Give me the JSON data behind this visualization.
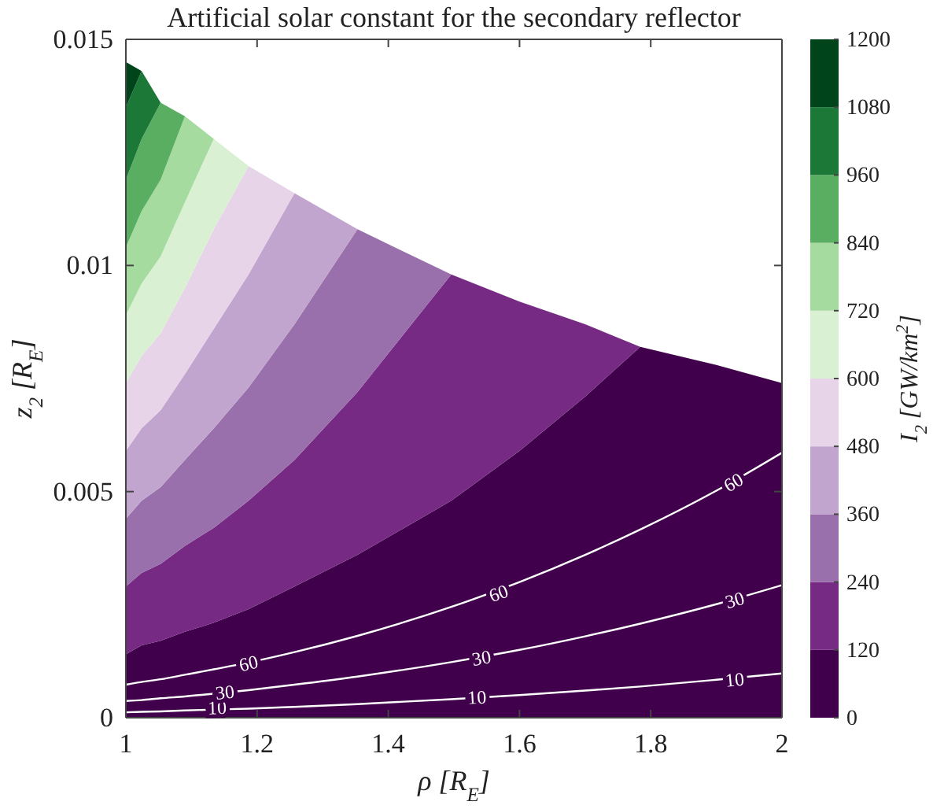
{
  "chart_data": {
    "type": "area",
    "title": "Artificial solar constant for the secondary reflector",
    "xlabel": "ρ [R$_{E}$]",
    "ylabel": "z$_{2}$ [R$_{E}$]",
    "clabel": "I$_{2}$ [GW/km$^{2}$]",
    "stacked": true,
    "x": [
      1,
      1.024,
      1.053,
      1.09,
      1.134,
      1.187,
      1.257,
      1.353,
      1.496,
      1.6,
      1.7,
      1.784,
      1.9,
      2
    ],
    "series": [
      {
        "color": "#40004b",
        "values": [
          0.0014,
          0.0016,
          0.0017,
          0.0019,
          0.0021,
          0.0024,
          0.0029,
          0.0036,
          0.0048,
          0.0059,
          0.0071,
          0.0082,
          0.0078,
          0.0074
        ]
      },
      {
        "color": "#762a83",
        "values": [
          0.0015,
          0.0016,
          0.0017,
          0.0019,
          0.0021,
          0.0024,
          0.0028,
          0.0036,
          0.005,
          0.0033,
          0.0016,
          0,
          null,
          null
        ]
      },
      {
        "color": "#9970ab",
        "values": [
          0.0015,
          0.0016,
          0.0017,
          0.0019,
          0.0022,
          0.0025,
          0.003,
          0.0036,
          0,
          null,
          null,
          null,
          null,
          null
        ]
      },
      {
        "color": "#c2a5cf",
        "values": [
          0.0015,
          0.0016,
          0.0017,
          0.0019,
          0.0022,
          0.0025,
          0.0029,
          0,
          null,
          null,
          null,
          null,
          null,
          null
        ]
      },
      {
        "color": "#e7d4e8",
        "values": [
          0.0015,
          0.0016,
          0.0017,
          0.0019,
          0.0022,
          0.0024,
          0,
          null,
          null,
          null,
          null,
          null,
          null,
          null
        ]
      },
      {
        "color": "#d9f0d3",
        "values": [
          0.0015,
          0.0016,
          0.0017,
          0.0019,
          0.002,
          0,
          null,
          null,
          null,
          null,
          null,
          null,
          null,
          null
        ]
      },
      {
        "color": "#a6dba0",
        "values": [
          0.0015,
          0.0016,
          0.0017,
          0.0019,
          0,
          null,
          null,
          null,
          null,
          null,
          null,
          null,
          null,
          null
        ]
      },
      {
        "color": "#5aae61",
        "values": [
          0.0015,
          0.0016,
          0.0017,
          0,
          null,
          null,
          null,
          null,
          null,
          null,
          null,
          null,
          null,
          null
        ]
      },
      {
        "color": "#1b7837",
        "values": [
          0.0016,
          0.0015,
          0,
          null,
          null,
          null,
          null,
          null,
          null,
          null,
          null,
          null,
          null,
          null
        ]
      },
      {
        "color": "#00441b",
        "values": [
          0.001,
          0,
          null,
          null,
          null,
          null,
          null,
          null,
          null,
          null,
          null,
          null,
          null,
          null
        ]
      },
      {
        "type": "line",
        "color": "#ffffff",
        "values": [
          0.00012,
          0.00013,
          0.00014,
          0.00016,
          0.00018,
          0.0002,
          0.00024,
          0.0003,
          0.00041,
          0.0005,
          0.0006,
          0.00069,
          0.00084,
          0.00098
        ]
      },
      {
        "type": "line",
        "color": "#ffffff",
        "values": [
          0.00037,
          0.00039,
          0.00043,
          0.00047,
          0.00053,
          0.00061,
          0.00073,
          0.00091,
          0.00123,
          0.0015,
          0.0018,
          0.00208,
          0.00251,
          0.00293
        ]
      },
      {
        "type": "line",
        "color": "#ffffff",
        "values": [
          0.00073,
          0.00079,
          0.00085,
          0.00095,
          0.00107,
          0.00122,
          0.00145,
          0.00181,
          0.00245,
          0.003,
          0.0036,
          0.00416,
          0.00502,
          0.00586
        ]
      }
    ],
    "annotations": [
      {
        "text": "10",
        "x": 1.139,
        "y": 0.00022
      },
      {
        "text": "30",
        "x": 1.151,
        "y": 0.00056
      },
      {
        "text": "60",
        "x": 1.187,
        "y": 0.0012
      },
      {
        "text": "10",
        "x": 1.535,
        "y": 0.00045
      },
      {
        "text": "30",
        "x": 1.542,
        "y": 0.00132
      },
      {
        "text": "60",
        "x": 1.568,
        "y": 0.00275
      },
      {
        "text": "10",
        "x": 1.928,
        "y": 0.00084
      },
      {
        "text": "30",
        "x": 1.928,
        "y": 0.0026
      },
      {
        "text": "60",
        "x": 1.926,
        "y": 0.0052
      }
    ],
    "xlim": [
      1,
      2
    ],
    "xticks": [
      1,
      1.2,
      1.4,
      1.6,
      1.8,
      2
    ],
    "ylim": [
      0,
      0.015
    ],
    "yticks": [
      0,
      0.005,
      0.01,
      0.015
    ],
    "clim": [
      0,
      1200
    ],
    "cticks": [
      0,
      120,
      240,
      360,
      480,
      600,
      720,
      840,
      960,
      1080,
      1200
    ]
  }
}
